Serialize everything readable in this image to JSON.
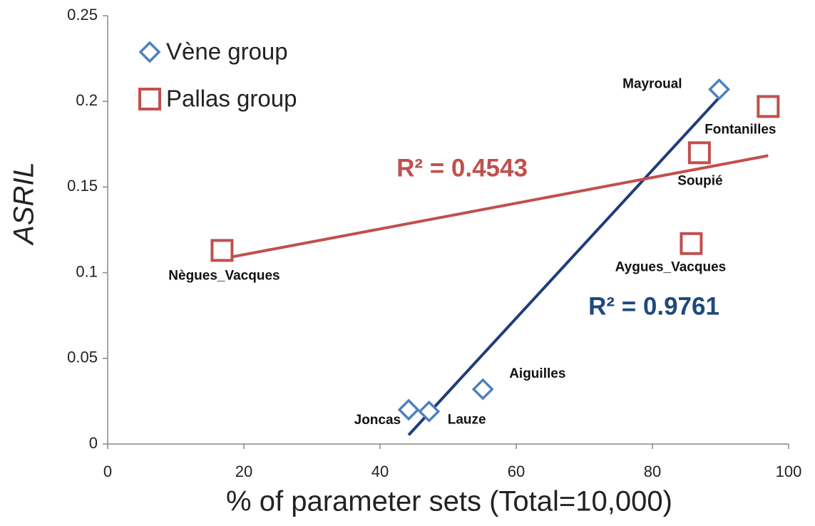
{
  "chart_data": {
    "type": "scatter",
    "xlabel": "% of parameter sets (Total=10,000)",
    "ylabel": "ASRIL",
    "xlim": [
      0,
      100
    ],
    "xticks": [
      0,
      20,
      40,
      60,
      80,
      100
    ],
    "ylim": [
      0,
      0.25
    ],
    "yticks": [
      0,
      0.05,
      0.1,
      0.15,
      0.2,
      0.25
    ],
    "grid": false,
    "legend": "upper left",
    "trendline": true,
    "series": [
      {
        "name": "Vène group",
        "color": "#4f81bd",
        "marker": "diamond",
        "trend_color": "#1f3d7a",
        "labels": [
          "Mayroual",
          "Aiguilles",
          "Joncas",
          "Lauze"
        ],
        "x": [
          89.8,
          55.1,
          44.2,
          47.2
        ],
        "values": [
          0.207,
          0.032,
          0.02,
          0.019
        ]
      },
      {
        "name": "Pallas group",
        "color": "#c0504d",
        "marker": "square",
        "trend_color": "#c0504d",
        "labels": [
          "Nègues_Vacques",
          "Fontanilles",
          "Soupié",
          "Aygues_Vacques"
        ],
        "x": [
          16.8,
          97.0,
          86.9,
          85.7
        ],
        "values": [
          0.113,
          0.197,
          0.17,
          0.117
        ]
      }
    ],
    "annotations": [
      {
        "text": "R² = 0.4543",
        "color": "#c0504d"
      },
      {
        "text": "R² = 0.9761",
        "color": "#1f497d"
      }
    ]
  }
}
